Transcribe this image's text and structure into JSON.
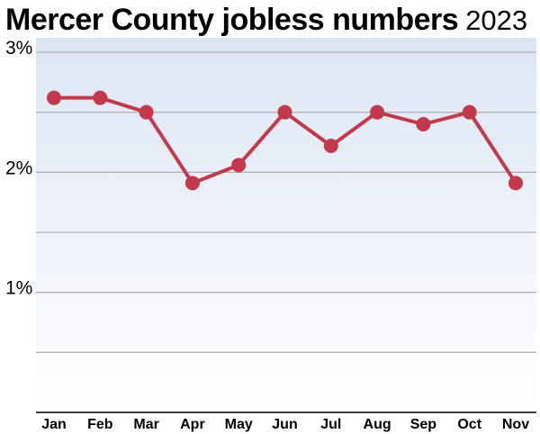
{
  "title": {
    "main": "Mercer County jobless numbers",
    "year": "2023"
  },
  "colors": {
    "line": "#c1394a",
    "background_top": "#dde5f4",
    "background_bottom": "#ffffff",
    "grid": "#b3b3b3",
    "axis": "#000000"
  },
  "chart_data": {
    "type": "line",
    "title": "Mercer County jobless numbers 2023",
    "xlabel": "",
    "ylabel": "",
    "categories": [
      "Jan",
      "Feb",
      "Mar",
      "Apr",
      "May",
      "Jun",
      "Jul",
      "Aug",
      "Sep",
      "Oct",
      "Nov"
    ],
    "series": [
      {
        "values": [
          2.62,
          2.62,
          2.5,
          1.91,
          2.06,
          2.5,
          2.22,
          2.5,
          2.4,
          2.5,
          1.91
        ]
      }
    ],
    "ylim": [
      0,
      3
    ],
    "yticks": [
      {
        "value": 3,
        "label": "3%"
      },
      {
        "value": 2,
        "label": "2%"
      },
      {
        "value": 1,
        "label": "1%"
      }
    ],
    "minor_gridlines": [
      2.5,
      1.5,
      0.5
    ],
    "grid": true,
    "legend": "none"
  }
}
